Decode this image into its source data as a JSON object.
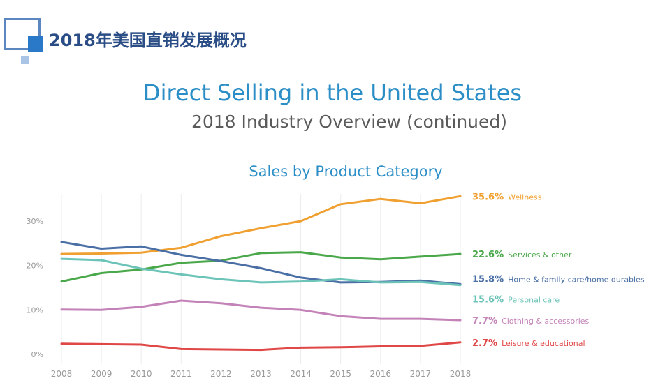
{
  "header": {
    "title": "2018年美国直销发展概况"
  },
  "titles": {
    "main": "Direct Selling in the United States",
    "sub": "2018 Industry Overview (continued)",
    "chart": "Sales by Product Category"
  },
  "chart_data": {
    "type": "line",
    "x": [
      2008,
      2009,
      2010,
      2011,
      2012,
      2013,
      2014,
      2015,
      2016,
      2017,
      2018
    ],
    "x_tick_labels": [
      "2008",
      "2009",
      "2010",
      "2011",
      "2012",
      "2013",
      "2014",
      "2015",
      "2016",
      "2017",
      "2018"
    ],
    "y_ticks": [
      0,
      10,
      20,
      30
    ],
    "y_tick_labels": [
      "0%",
      "10%",
      "20%",
      "30%"
    ],
    "ylim": [
      -1,
      37
    ],
    "grid": "vertical",
    "series": [
      {
        "name": "Wellness",
        "end_label": "35.6%",
        "color": "#f0a030",
        "values": [
          22.6,
          22.7,
          22.9,
          24.0,
          26.6,
          28.4,
          30.0,
          33.8,
          35.0,
          34.0,
          35.6
        ]
      },
      {
        "name": "Services & other",
        "end_label": "22.6%",
        "color": "#4aa84a",
        "values": [
          16.4,
          18.3,
          19.1,
          20.6,
          21.1,
          22.8,
          23.0,
          21.8,
          21.4,
          22.0,
          22.6
        ]
      },
      {
        "name": "Home & family care/home durables",
        "end_label": "15.8%",
        "color": "#4a6fa5",
        "values": [
          25.3,
          23.8,
          24.3,
          22.4,
          21.0,
          19.4,
          17.3,
          16.2,
          16.3,
          16.6,
          15.8
        ]
      },
      {
        "name": "Personal care",
        "end_label": "15.6%",
        "color": "#6cc4b8",
        "values": [
          21.5,
          21.2,
          19.3,
          18.0,
          16.9,
          16.2,
          16.4,
          16.9,
          16.2,
          16.3,
          15.6
        ]
      },
      {
        "name": "Clothing & accessories",
        "end_label": "7.7%",
        "color": "#c483b8",
        "values": [
          10.1,
          10.0,
          10.7,
          12.1,
          11.5,
          10.5,
          10.0,
          8.6,
          8.0,
          8.0,
          7.7
        ]
      },
      {
        "name": "Leisure & educational",
        "end_label": "2.7%",
        "color": "#e04848",
        "values": [
          2.4,
          2.3,
          2.2,
          1.2,
          1.1,
          1.0,
          1.5,
          1.6,
          1.8,
          1.9,
          2.7
        ]
      }
    ]
  }
}
